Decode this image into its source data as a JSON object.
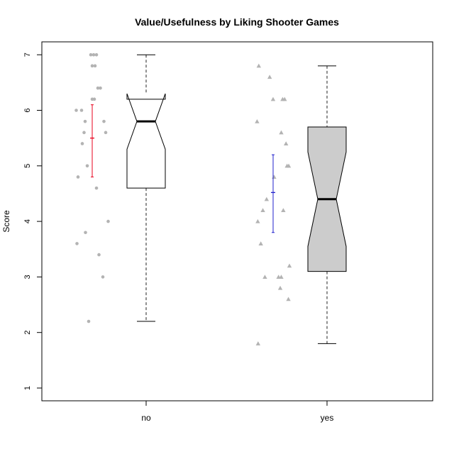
{
  "chart_data": {
    "type": "boxplot",
    "title": "Value/Usefulness by Liking Shooter Games",
    "xlabel": "",
    "ylabel": "Score",
    "ylim": [
      0.75,
      7.25
    ],
    "yticks": [
      1,
      2,
      3,
      4,
      5,
      6,
      7
    ],
    "grid": false,
    "legend": "none",
    "categories": [
      "no",
      "yes"
    ],
    "groups": [
      {
        "label": "no",
        "box_fill": "#ffffff",
        "point_color": "#b3b3b3",
        "point_shape": "circle",
        "whisker_low": 2.2,
        "q1": 4.6,
        "median": 5.8,
        "q3": 6.2,
        "whisker_high": 7.0,
        "notch_low": 5.3,
        "notch_high": 6.3,
        "mean": 5.5,
        "ci_low": 4.8,
        "ci_high": 6.1,
        "ci_color": "#e8001c",
        "points": [
          7.0,
          7.0,
          7.0,
          6.8,
          6.8,
          6.4,
          6.4,
          6.2,
          6.2,
          6.0,
          6.0,
          5.8,
          5.8,
          5.6,
          5.6,
          5.4,
          5.0,
          4.8,
          4.6,
          4.0,
          3.8,
          3.6,
          3.4,
          3.0,
          2.2
        ],
        "jitter": [
          0.46,
          0.54,
          0.62,
          0.5,
          0.58,
          0.66,
          0.73,
          0.5,
          0.56,
          0.05,
          0.2,
          0.3,
          0.83,
          0.27,
          0.88,
          0.22,
          0.36,
          0.1,
          0.62,
          0.95,
          0.31,
          0.07,
          0.69,
          0.8,
          0.4
        ]
      },
      {
        "label": "yes",
        "box_fill": "#cccccc",
        "point_color": "#b3b3b3",
        "point_shape": "triangle",
        "whisker_low": 1.8,
        "q1": 3.1,
        "median": 4.4,
        "q3": 5.7,
        "whisker_high": 6.8,
        "notch_low": 3.55,
        "notch_high": 5.25,
        "mean": 4.52,
        "ci_low": 3.8,
        "ci_high": 5.2,
        "ci_color": "#1f1fcc",
        "points": [
          6.8,
          6.6,
          6.2,
          6.2,
          6.2,
          5.8,
          5.6,
          5.4,
          5.0,
          5.0,
          4.8,
          4.4,
          4.2,
          4.2,
          4.0,
          3.6,
          3.2,
          3.0,
          3.0,
          3.0,
          2.8,
          2.6,
          1.8
        ],
        "jitter": [
          0.1,
          0.42,
          0.52,
          0.8,
          0.86,
          0.05,
          0.76,
          0.9,
          0.93,
          0.98,
          0.55,
          0.33,
          0.22,
          0.82,
          0.07,
          0.16,
          1.0,
          0.28,
          0.68,
          0.76,
          0.73,
          0.97,
          0.08
        ]
      }
    ]
  }
}
